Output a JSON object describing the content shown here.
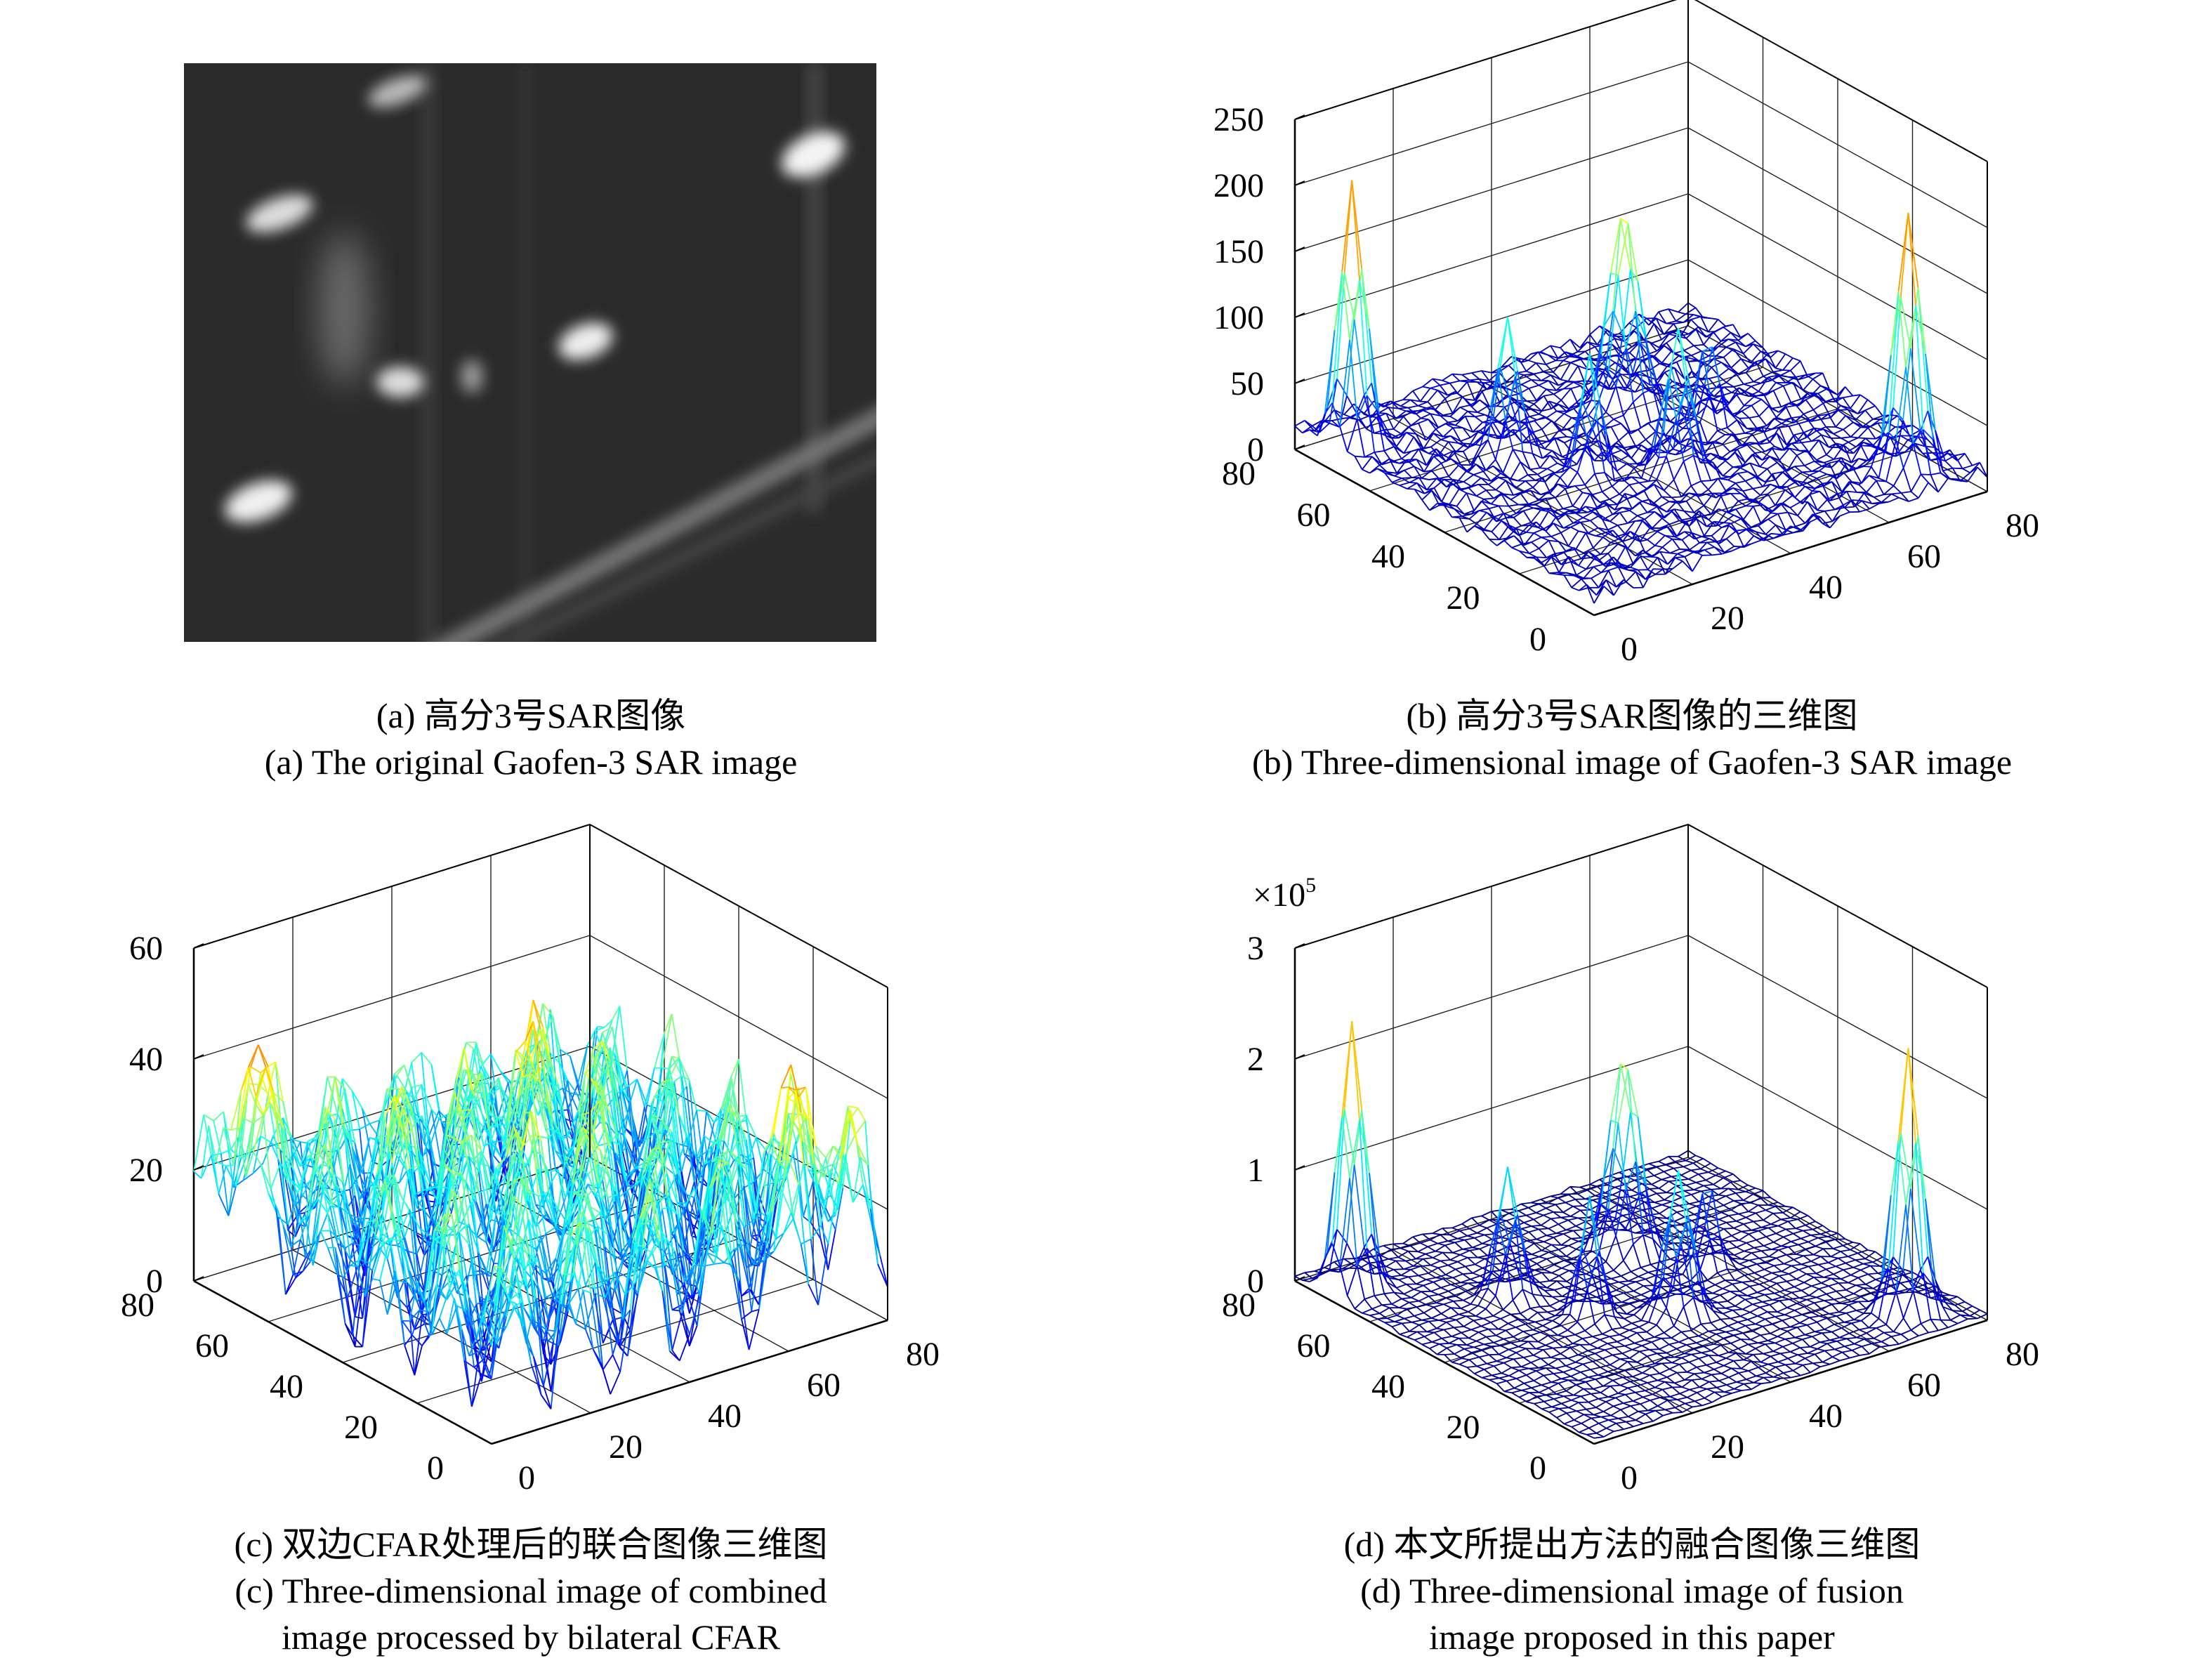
{
  "panels": [
    {
      "id": "a",
      "caption_cn": "(a) 高分3号SAR图像",
      "caption_en": [
        "(a) The original Gaofen-3 SAR image"
      ]
    },
    {
      "id": "b",
      "caption_cn": "(b) 高分3号SAR图像的三维图",
      "caption_en": [
        "(b) Three-dimensional image of Gaofen-3 SAR image"
      ]
    },
    {
      "id": "c",
      "caption_cn": "(c) 双边CFAR处理后的联合图像三维图",
      "caption_en": [
        "(c) Three-dimensional image of combined",
        "image processed by bilateral CFAR"
      ]
    },
    {
      "id": "d",
      "caption_cn": "(d) 本文所提出方法的融合图像三维图",
      "caption_en": [
        "(d) Three-dimensional image of fusion",
        "image proposed in this paper"
      ]
    }
  ],
  "chart_data": [
    {
      "panel": "b",
      "type": "surface-mesh",
      "colormap": "jet",
      "grid": true,
      "x_ticks": [
        "0",
        "20",
        "40",
        "60",
        "80"
      ],
      "y_ticks": [
        "0",
        "20",
        "40",
        "60",
        "80"
      ],
      "z_ticks": [
        "0",
        "50",
        "100",
        "150",
        "200",
        "250"
      ],
      "xlim": [
        0,
        80
      ],
      "ylim": [
        0,
        80
      ],
      "zlim": [
        0,
        250
      ],
      "z_multiplier": ""
    },
    {
      "panel": "c",
      "type": "surface-mesh",
      "colormap": "jet",
      "grid": true,
      "x_ticks": [
        "0",
        "20",
        "40",
        "60",
        "80"
      ],
      "y_ticks": [
        "0",
        "20",
        "40",
        "60",
        "80"
      ],
      "z_ticks": [
        "0",
        "20",
        "40",
        "60"
      ],
      "xlim": [
        0,
        80
      ],
      "ylim": [
        0,
        80
      ],
      "zlim": [
        0,
        60
      ],
      "z_multiplier": ""
    },
    {
      "panel": "d",
      "type": "surface-mesh",
      "colormap": "jet",
      "grid": true,
      "x_ticks": [
        "0",
        "20",
        "40",
        "60",
        "80"
      ],
      "y_ticks": [
        "0",
        "20",
        "40",
        "60",
        "80"
      ],
      "z_ticks": [
        "0",
        "1",
        "2",
        "3"
      ],
      "xlim": [
        0,
        80
      ],
      "ylim": [
        0,
        80
      ],
      "zlim": [
        0,
        3
      ],
      "z_multiplier": "×10",
      "z_multiplier_exp": "5"
    }
  ]
}
